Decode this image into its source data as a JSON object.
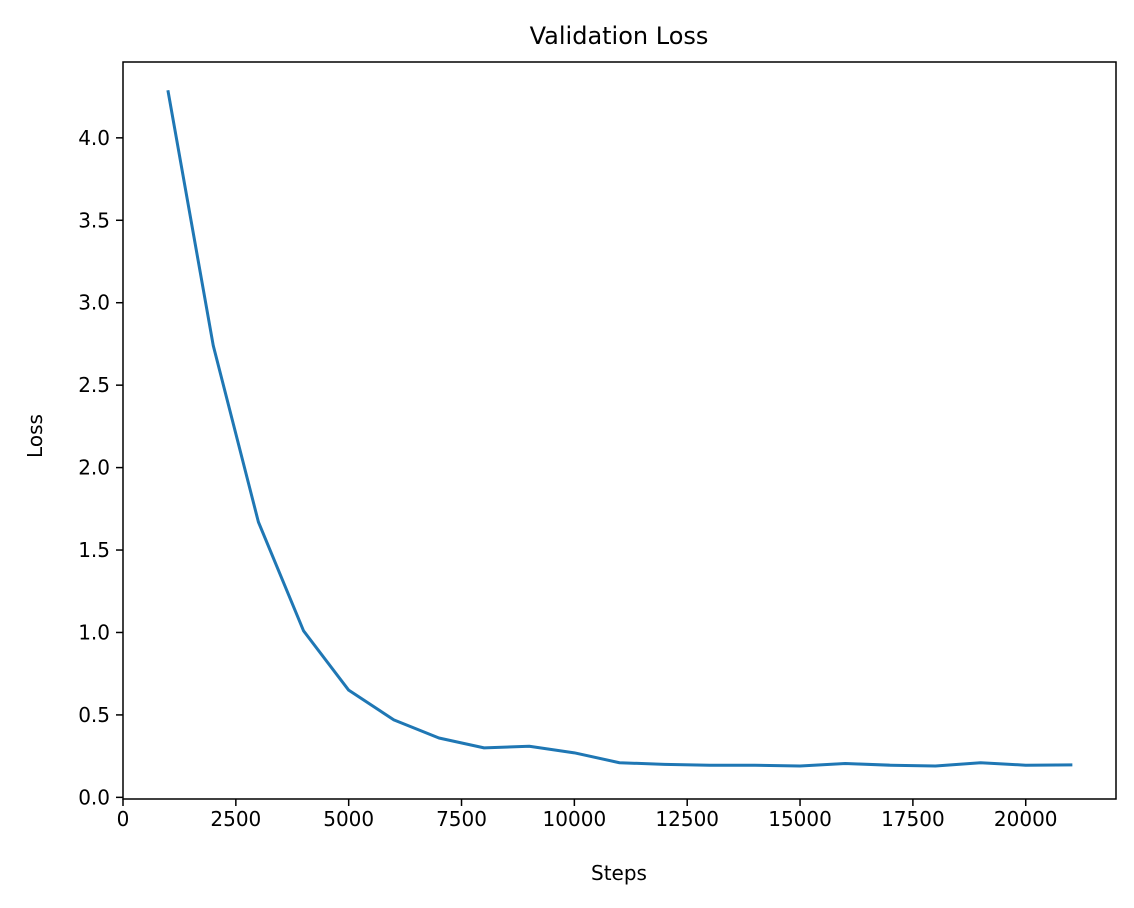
{
  "chart_data": {
    "type": "line",
    "title": "Validation Loss",
    "xlabel": "Steps",
    "ylabel": "Loss",
    "xlim": [
      0,
      22000
    ],
    "ylim": [
      -0.01,
      4.46
    ],
    "x_ticks": [
      0,
      2500,
      5000,
      7500,
      10000,
      12500,
      15000,
      17500,
      20000
    ],
    "x_tick_labels": [
      "0",
      "2500",
      "5000",
      "7500",
      "10000",
      "12500",
      "15000",
      "17500",
      "20000"
    ],
    "y_ticks": [
      0.0,
      0.5,
      1.0,
      1.5,
      2.0,
      2.5,
      3.0,
      3.5,
      4.0
    ],
    "y_tick_labels": [
      "0.0",
      "0.5",
      "1.0",
      "1.5",
      "2.0",
      "2.5",
      "3.0",
      "3.5",
      "4.0"
    ],
    "grid": false,
    "series": [
      {
        "color": "#1f77b4",
        "x": [
          1000,
          2000,
          3000,
          4000,
          5000,
          6000,
          7000,
          8000,
          9000,
          10000,
          11000,
          12000,
          13000,
          14000,
          15000,
          16000,
          17000,
          18000,
          19000,
          20000,
          21000
        ],
        "y": [
          4.28,
          2.74,
          1.67,
          1.01,
          0.65,
          0.47,
          0.36,
          0.3,
          0.31,
          0.27,
          0.21,
          0.2,
          0.195,
          0.195,
          0.19,
          0.205,
          0.195,
          0.19,
          0.21,
          0.195,
          0.197
        ]
      }
    ]
  }
}
